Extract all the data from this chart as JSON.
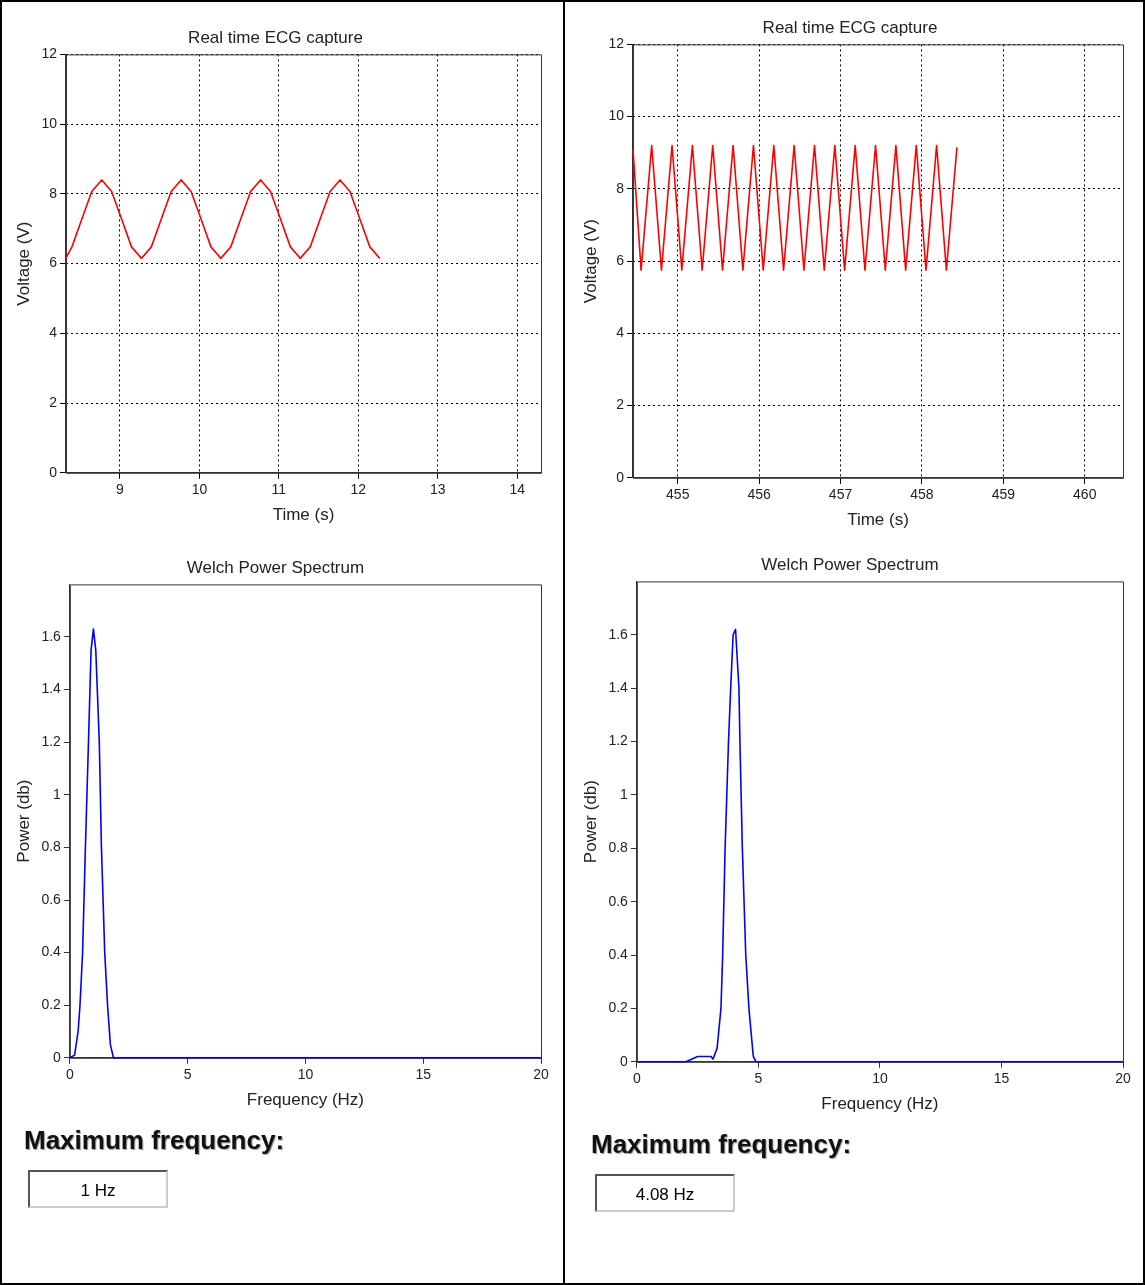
{
  "chart_data": [
    {
      "type": "line",
      "title": "Real time ECG capture",
      "xlabel": "Time (s)",
      "ylabel": "Voltage (V)",
      "xlim": [
        8.32,
        14.3
      ],
      "xticks": [
        9,
        10,
        11,
        12,
        13,
        14
      ],
      "ylim": [
        0,
        12
      ],
      "yticks": [
        0,
        2,
        4,
        6,
        8,
        10,
        12
      ],
      "grid": true,
      "line_style": "solid",
      "series": [
        {
          "color": "#ff0000",
          "x": [
            8.32,
            8.395,
            8.52,
            8.645,
            8.77,
            8.895,
            9.02,
            9.145,
            9.27,
            9.395,
            9.52,
            9.645,
            9.77,
            9.895,
            10.02,
            10.145,
            10.27,
            10.395,
            10.52,
            10.645,
            10.77,
            10.895,
            11.02,
            11.145,
            11.27,
            11.395,
            11.52,
            11.645,
            11.77,
            11.895,
            12.02,
            12.145,
            12.27
          ],
          "values": [
            6.16,
            6.48,
            7.28,
            8.07,
            8.4,
            8.07,
            7.28,
            6.48,
            6.15,
            6.48,
            7.28,
            8.07,
            8.4,
            8.07,
            7.28,
            6.48,
            6.15,
            6.48,
            7.28,
            8.07,
            8.4,
            8.07,
            7.28,
            6.48,
            6.15,
            6.48,
            7.28,
            8.07,
            8.4,
            8.07,
            7.28,
            6.48,
            6.15
          ]
        }
      ]
    },
    {
      "type": "line",
      "title": "Real time ECG capture",
      "xlabel": "Time (s)",
      "ylabel": "Voltage (V)",
      "xlim": [
        454.45,
        460.47
      ],
      "xticks": [
        455,
        456,
        457,
        458,
        459,
        460
      ],
      "ylim": [
        0,
        12
      ],
      "yticks": [
        0,
        2,
        4,
        6,
        8,
        10,
        12
      ],
      "grid": true,
      "line_style": "solid",
      "series": [
        {
          "color": "#ff0000",
          "x": [
            454.45,
            454.55,
            454.68,
            454.8,
            454.93,
            455.05,
            455.18,
            455.3,
            455.43,
            455.55,
            455.68,
            455.8,
            455.93,
            456.05,
            456.18,
            456.3,
            456.43,
            456.55,
            456.68,
            456.8,
            456.93,
            457.05,
            457.18,
            457.3,
            457.43,
            457.55,
            457.68,
            457.8,
            457.93,
            458.05,
            458.18,
            458.3,
            458.43
          ],
          "values": [
            9.1,
            5.75,
            9.2,
            5.75,
            9.2,
            5.75,
            9.2,
            5.75,
            9.2,
            5.75,
            9.2,
            5.75,
            9.2,
            5.75,
            9.2,
            5.75,
            9.2,
            5.75,
            9.2,
            5.75,
            9.2,
            5.75,
            9.2,
            5.75,
            9.2,
            5.75,
            9.2,
            5.75,
            9.2,
            5.75,
            9.2,
            5.75,
            9.15
          ]
        }
      ]
    },
    {
      "type": "line",
      "title": "Welch Power Spectrum",
      "xlabel": "Frequency (Hz)",
      "ylabel": "Power (db)",
      "xlim": [
        0,
        20
      ],
      "xticks": [
        0,
        5,
        10,
        15,
        20
      ],
      "ylim": [
        0,
        1.8
      ],
      "yticks": [
        0,
        0.2,
        0.4,
        0.6,
        0.8,
        1,
        1.2,
        1.4,
        1.6
      ],
      "line_style": "solid",
      "annotations": [
        "Maximum frequency:",
        "1 Hz"
      ],
      "series": [
        {
          "color": "#0000ff",
          "x": [
            0,
            0.2,
            0.35,
            0.43,
            0.54,
            0.66,
            0.79,
            0.9,
            1,
            1.1,
            1.25,
            1.34,
            1.48,
            1.6,
            1.72,
            1.85,
            20
          ],
          "values": [
            0,
            0.01,
            0.1,
            0.2,
            0.4,
            0.8,
            1.2,
            1.55,
            1.63,
            1.55,
            1.2,
            0.8,
            0.4,
            0.2,
            0.05,
            0,
            0
          ]
        }
      ]
    },
    {
      "type": "line",
      "title": "Welch Power Spectrum",
      "xlabel": "Frequency (Hz)",
      "ylabel": "Power (db)",
      "xlim": [
        0,
        20
      ],
      "xticks": [
        0,
        5,
        10,
        15,
        20
      ],
      "ylim": [
        0,
        1.8
      ],
      "yticks": [
        0,
        0.2,
        0.4,
        0.6,
        0.8,
        1,
        1.2,
        1.4,
        1.6
      ],
      "line_style": "solid",
      "annotations": [
        "Maximum frequency:",
        "4.08 Hz"
      ],
      "series": [
        {
          "color": "#0000ff",
          "x": [
            0,
            2.02,
            2.5,
            3.05,
            3.13,
            3.3,
            3.46,
            3.53,
            3.63,
            3.77,
            3.86,
            3.96,
            4.06,
            4.2,
            4.24,
            4.34,
            4.48,
            4.61,
            4.79,
            4.9,
            20
          ],
          "values": [
            0,
            0,
            0.02,
            0.02,
            0.01,
            0.05,
            0.2,
            0.4,
            0.8,
            1.2,
            1.4,
            1.6,
            1.62,
            1.4,
            1.2,
            0.8,
            0.4,
            0.2,
            0.02,
            0,
            0
          ]
        }
      ]
    }
  ]
}
